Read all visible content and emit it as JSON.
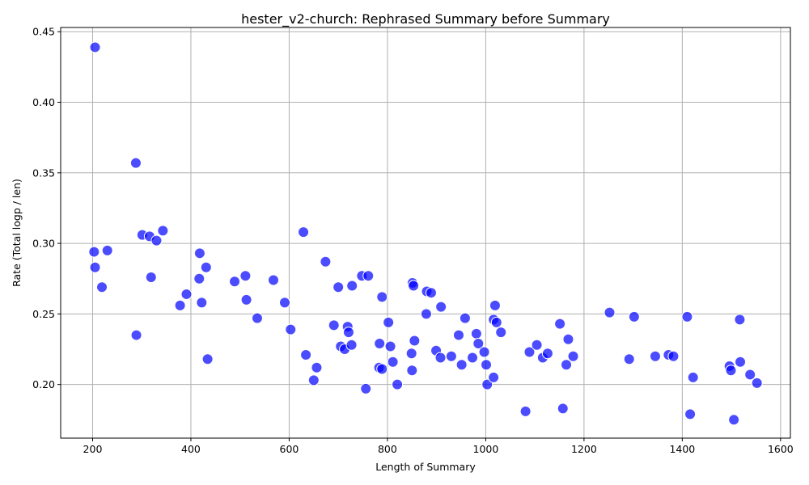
{
  "chart_data": {
    "type": "scatter",
    "title": "hester_v2-church: Rephrased Summary before Summary",
    "xlabel": "Length of Summary",
    "ylabel": "Rate (Total logp / len)",
    "xlim": [
      135,
      1620
    ],
    "ylim": [
      0.162,
      0.453
    ],
    "xticks": [
      200,
      400,
      600,
      800,
      1000,
      1200,
      1400,
      1600
    ],
    "yticks": [
      0.2,
      0.25,
      0.3,
      0.35,
      0.4,
      0.45
    ],
    "yticks_labels": [
      "0.20",
      "0.25",
      "0.30",
      "0.35",
      "0.40",
      "0.45"
    ],
    "grid": true,
    "color": "#0000ff",
    "points": [
      [
        205,
        0.439
      ],
      [
        203,
        0.294
      ],
      [
        205,
        0.283
      ],
      [
        219,
        0.269
      ],
      [
        230,
        0.295
      ],
      [
        288,
        0.357
      ],
      [
        289,
        0.235
      ],
      [
        301,
        0.306
      ],
      [
        316,
        0.305
      ],
      [
        319,
        0.276
      ],
      [
        330,
        0.302
      ],
      [
        343,
        0.309
      ],
      [
        378,
        0.256
      ],
      [
        391,
        0.264
      ],
      [
        418,
        0.293
      ],
      [
        417,
        0.275
      ],
      [
        422,
        0.258
      ],
      [
        431,
        0.283
      ],
      [
        434,
        0.218
      ],
      [
        489,
        0.273
      ],
      [
        511,
        0.277
      ],
      [
        513,
        0.26
      ],
      [
        535,
        0.247
      ],
      [
        568,
        0.274
      ],
      [
        591,
        0.258
      ],
      [
        603,
        0.239
      ],
      [
        629,
        0.308
      ],
      [
        634,
        0.221
      ],
      [
        650,
        0.203
      ],
      [
        656,
        0.212
      ],
      [
        674,
        0.287
      ],
      [
        691,
        0.242
      ],
      [
        700,
        0.269
      ],
      [
        705,
        0.227
      ],
      [
        713,
        0.225
      ],
      [
        719,
        0.241
      ],
      [
        721,
        0.237
      ],
      [
        727,
        0.228
      ],
      [
        728,
        0.27
      ],
      [
        748,
        0.277
      ],
      [
        756,
        0.197
      ],
      [
        761,
        0.277
      ],
      [
        783,
        0.212
      ],
      [
        784,
        0.229
      ],
      [
        789,
        0.211
      ],
      [
        789,
        0.262
      ],
      [
        802,
        0.244
      ],
      [
        806,
        0.227
      ],
      [
        811,
        0.216
      ],
      [
        820,
        0.2
      ],
      [
        849,
        0.222
      ],
      [
        850,
        0.21
      ],
      [
        851,
        0.272
      ],
      [
        853,
        0.27
      ],
      [
        855,
        0.231
      ],
      [
        879,
        0.25
      ],
      [
        880,
        0.266
      ],
      [
        889,
        0.265
      ],
      [
        899,
        0.224
      ],
      [
        908,
        0.219
      ],
      [
        909,
        0.255
      ],
      [
        930,
        0.22
      ],
      [
        945,
        0.235
      ],
      [
        951,
        0.214
      ],
      [
        958,
        0.247
      ],
      [
        973,
        0.219
      ],
      [
        981,
        0.236
      ],
      [
        985,
        0.229
      ],
      [
        997,
        0.223
      ],
      [
        1001,
        0.214
      ],
      [
        1003,
        0.2
      ],
      [
        1016,
        0.205
      ],
      [
        1016,
        0.246
      ],
      [
        1019,
        0.256
      ],
      [
        1022,
        0.244
      ],
      [
        1031,
        0.237
      ],
      [
        1081,
        0.181
      ],
      [
        1089,
        0.223
      ],
      [
        1104,
        0.228
      ],
      [
        1116,
        0.219
      ],
      [
        1126,
        0.222
      ],
      [
        1151,
        0.243
      ],
      [
        1157,
        0.183
      ],
      [
        1164,
        0.214
      ],
      [
        1168,
        0.232
      ],
      [
        1178,
        0.22
      ],
      [
        1252,
        0.251
      ],
      [
        1292,
        0.218
      ],
      [
        1302,
        0.248
      ],
      [
        1345,
        0.22
      ],
      [
        1372,
        0.221
      ],
      [
        1382,
        0.22
      ],
      [
        1410,
        0.248
      ],
      [
        1416,
        0.179
      ],
      [
        1422,
        0.205
      ],
      [
        1496,
        0.213
      ],
      [
        1499,
        0.21
      ],
      [
        1505,
        0.175
      ],
      [
        1517,
        0.246
      ],
      [
        1518,
        0.216
      ],
      [
        1538,
        0.207
      ],
      [
        1552,
        0.201
      ]
    ]
  }
}
